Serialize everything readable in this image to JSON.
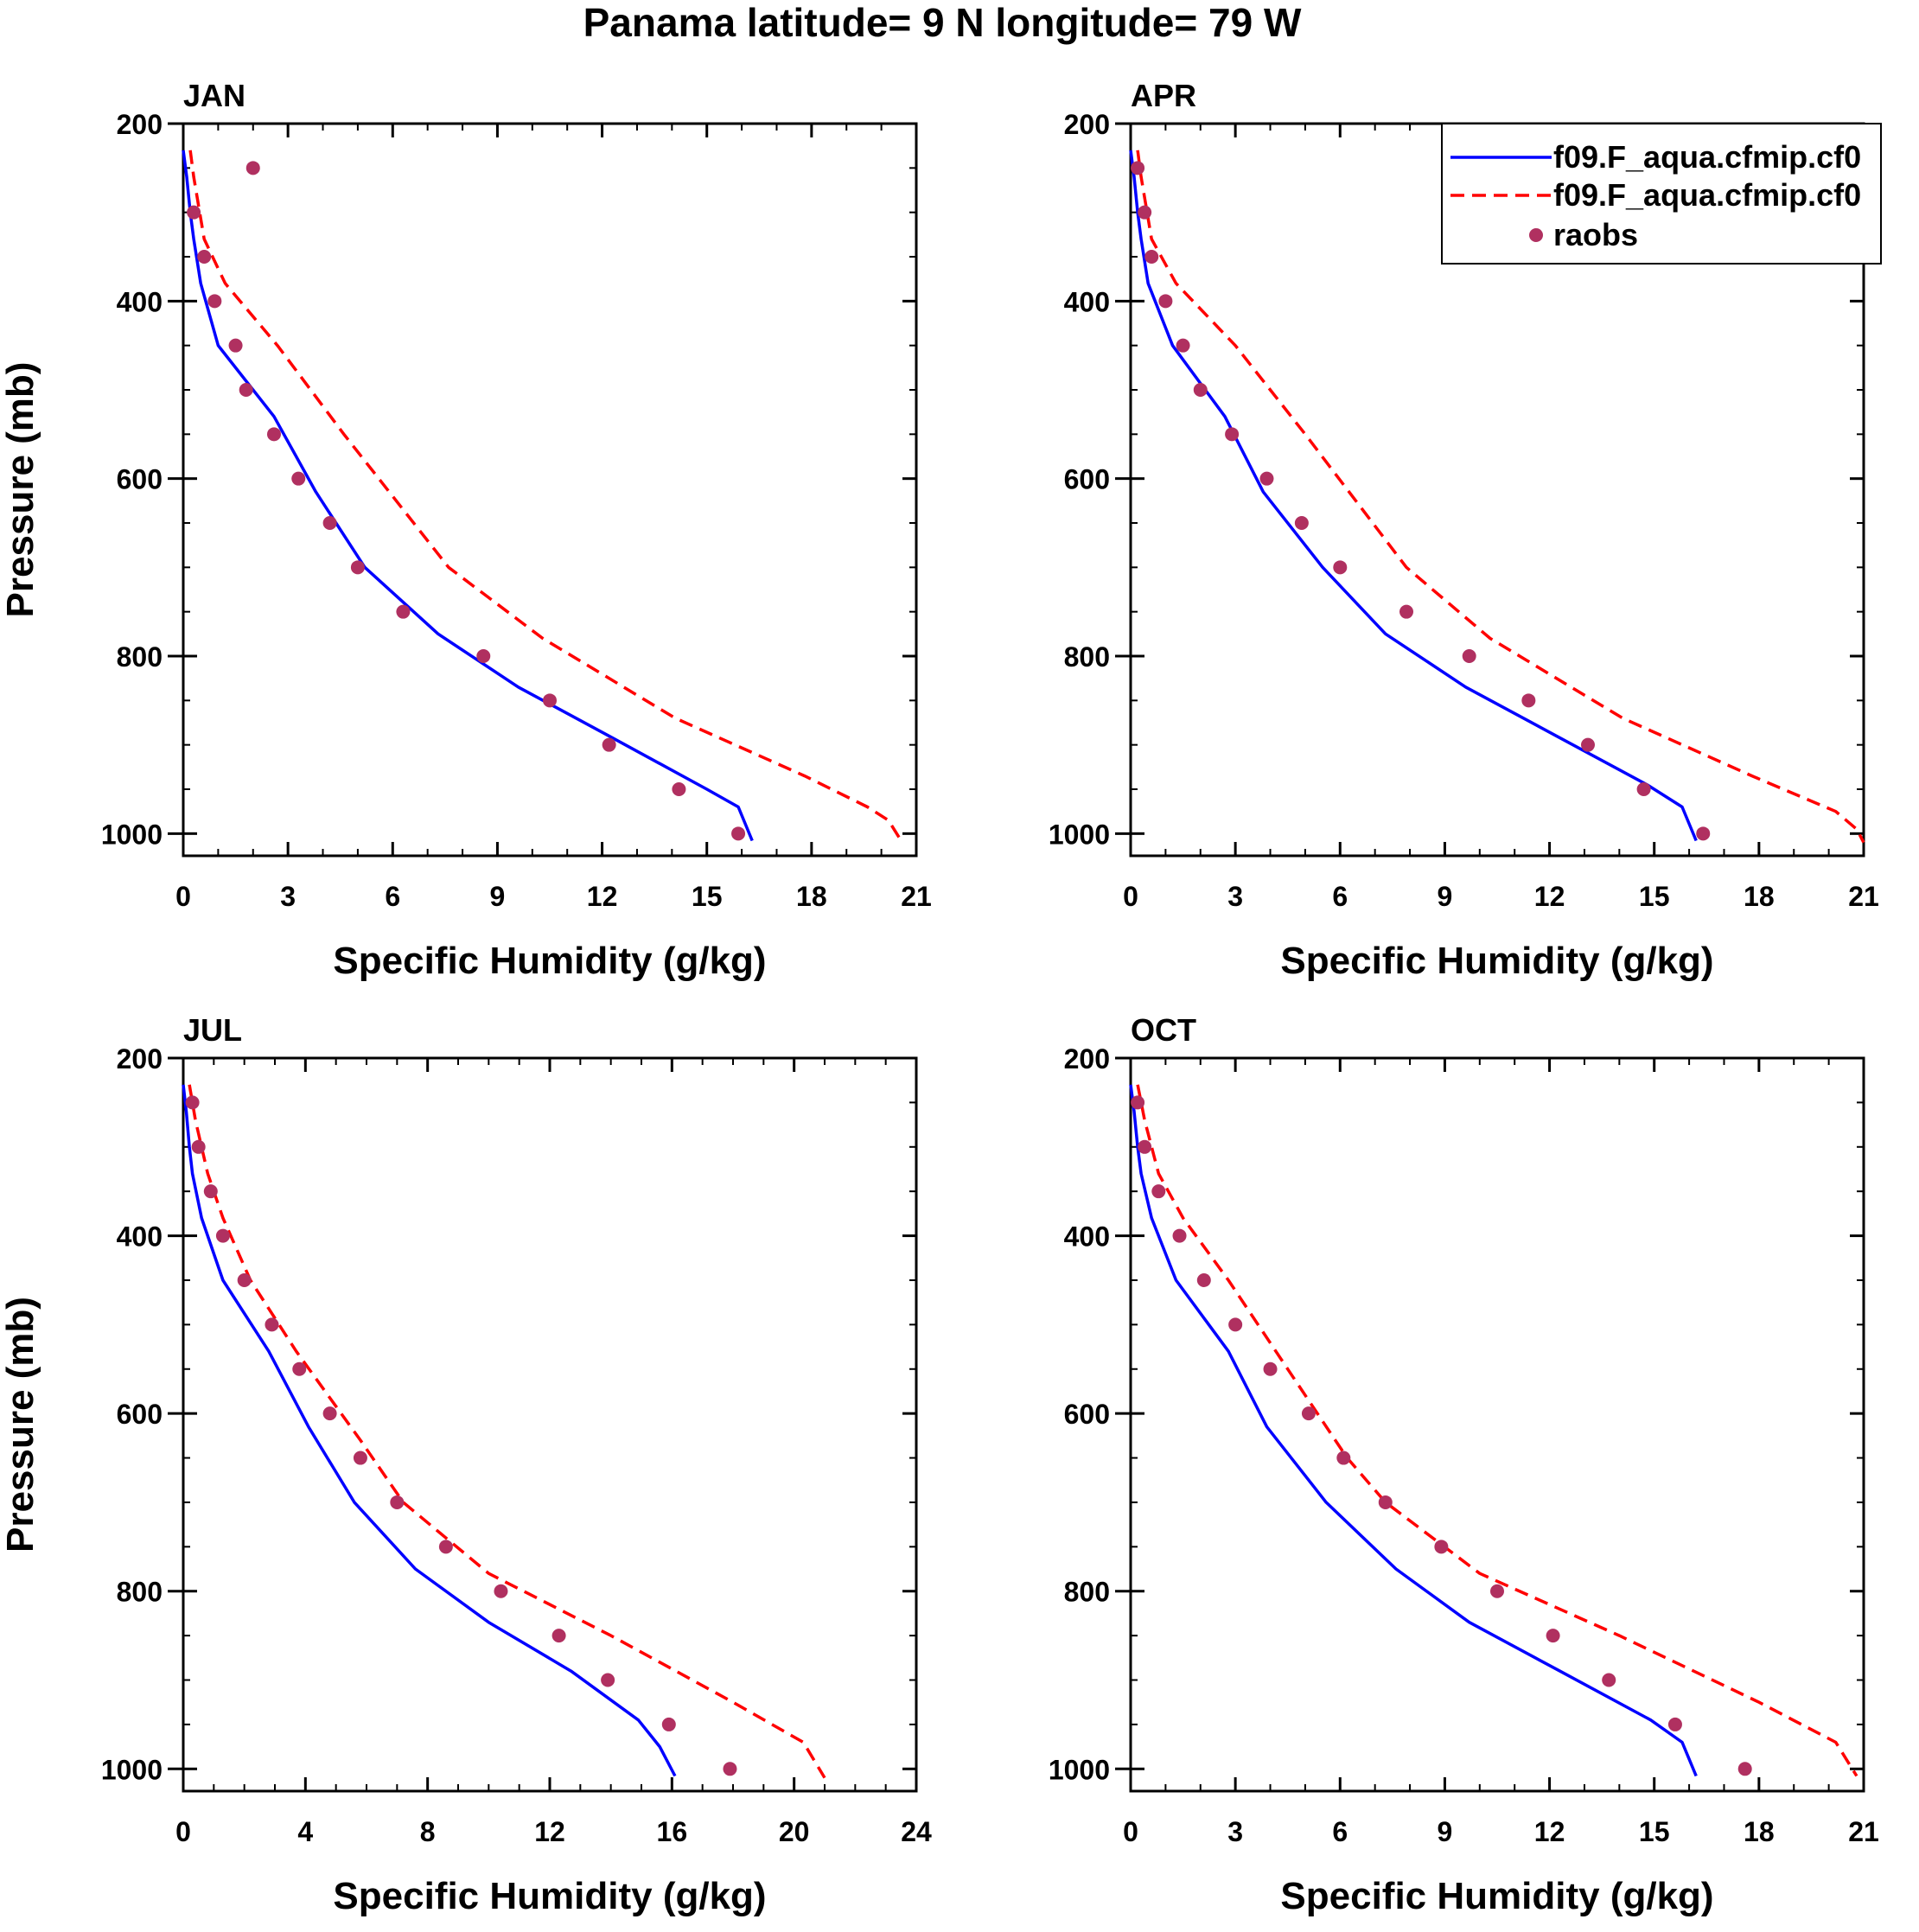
{
  "title": "Panama  latitude= 9 N longitude= 79 W",
  "legend": {
    "items": [
      {
        "label": "f09.F_aqua.cfmip.cf0",
        "style": "solid",
        "color": "#0000ff"
      },
      {
        "label": "f09.F_aqua.cfmip.cf0",
        "style": "dashed",
        "color": "#ff0000"
      },
      {
        "label": "raobs",
        "style": "dots",
        "color": "#b03060"
      }
    ]
  },
  "chart_data": [
    {
      "type": "line",
      "title": "JAN",
      "xlabel": "Specific Humidity (g/kg)",
      "ylabel": "Pressure (mb)",
      "xlim": [
        0,
        21
      ],
      "xticks": [
        "0",
        "3",
        "6",
        "9",
        "12",
        "15",
        "18",
        "21"
      ],
      "ylim": [
        200,
        1025
      ],
      "yticks": [
        "200",
        "400",
        "600",
        "800",
        "1000"
      ],
      "series": [
        {
          "name": "f09.F_aqua.cfmip.cf0",
          "style": "solid",
          "x": [
            0.0,
            0.1,
            0.2,
            0.3,
            0.5,
            1.0,
            2.6,
            3.8,
            5.2,
            7.3,
            9.6,
            12.2,
            15.0,
            15.9,
            16.3
          ],
          "y": [
            230,
            260,
            300,
            330,
            380,
            450,
            530,
            615,
            700,
            775,
            835,
            890,
            950,
            970,
            1008
          ]
        },
        {
          "name": "f09.F_aqua.cfmip.cf0",
          "style": "dashed",
          "x": [
            0.2,
            0.3,
            0.6,
            1.2,
            2.7,
            4.6,
            7.6,
            10.3,
            14.1,
            17.8,
            19.6,
            20.2,
            20.6
          ],
          "y": [
            230,
            260,
            330,
            380,
            450,
            550,
            700,
            780,
            870,
            935,
            970,
            985,
            1010
          ]
        },
        {
          "name": "raobs",
          "style": "dots",
          "x": [
            2.0,
            0.3,
            0.6,
            0.9,
            1.5,
            1.8,
            2.6,
            3.3,
            4.2,
            5.0,
            6.3,
            8.6,
            10.5,
            12.2,
            14.2,
            15.9
          ],
          "y": [
            250,
            300,
            350,
            400,
            450,
            500,
            550,
            600,
            650,
            700,
            750,
            800,
            850,
            900,
            950,
            1000
          ]
        }
      ]
    },
    {
      "type": "line",
      "title": "APR",
      "xlabel": "Specific Humidity (g/kg)",
      "ylabel": "",
      "xlim": [
        0,
        21
      ],
      "xticks": [
        "0",
        "3",
        "6",
        "9",
        "12",
        "15",
        "18",
        "21"
      ],
      "ylim": [
        200,
        1025
      ],
      "yticks": [
        "200",
        "400",
        "600",
        "800",
        "1000"
      ],
      "series": [
        {
          "name": "f09.F_aqua.cfmip.cf0",
          "style": "solid",
          "x": [
            0.0,
            0.1,
            0.2,
            0.3,
            0.5,
            1.2,
            2.7,
            3.8,
            5.5,
            7.3,
            9.6,
            12.2,
            14.8,
            15.8,
            16.2
          ],
          "y": [
            230,
            260,
            300,
            330,
            380,
            450,
            530,
            615,
            700,
            775,
            835,
            890,
            945,
            970,
            1008
          ]
        },
        {
          "name": "f09.F_aqua.cfmip.cf0",
          "style": "dashed",
          "x": [
            0.2,
            0.3,
            0.6,
            1.3,
            3.0,
            5.0,
            7.9,
            10.3,
            14.1,
            17.8,
            20.2,
            20.8,
            21.0
          ],
          "y": [
            230,
            260,
            330,
            380,
            450,
            550,
            700,
            780,
            870,
            935,
            975,
            995,
            1010
          ]
        },
        {
          "name": "raobs",
          "style": "dots",
          "x": [
            0.2,
            0.4,
            0.6,
            1.0,
            1.5,
            2.0,
            2.9,
            3.9,
            4.9,
            6.0,
            7.9,
            9.7,
            11.4,
            13.1,
            14.7,
            16.4
          ],
          "y": [
            250,
            300,
            350,
            400,
            450,
            500,
            550,
            600,
            650,
            700,
            750,
            800,
            850,
            900,
            950,
            1000
          ]
        }
      ]
    },
    {
      "type": "line",
      "title": "JUL",
      "xlabel": "Specific Humidity (g/kg)",
      "ylabel": "Pressure (mb)",
      "xlim": [
        0,
        24
      ],
      "xticks": [
        "0",
        "4",
        "8",
        "12",
        "16",
        "20",
        "24"
      ],
      "ylim": [
        200,
        1025
      ],
      "yticks": [
        "200",
        "400",
        "600",
        "800",
        "1000"
      ],
      "series": [
        {
          "name": "f09.F_aqua.cfmip.cf0",
          "style": "solid",
          "x": [
            0.0,
            0.1,
            0.2,
            0.3,
            0.6,
            1.3,
            2.8,
            4.1,
            5.6,
            7.6,
            10.0,
            12.7,
            14.9,
            15.6,
            16.1
          ],
          "y": [
            230,
            260,
            300,
            330,
            380,
            450,
            530,
            615,
            700,
            775,
            835,
            890,
            945,
            975,
            1008
          ]
        },
        {
          "name": "f09.F_aqua.cfmip.cf0",
          "style": "dashed",
          "x": [
            0.2,
            0.4,
            0.8,
            1.3,
            2.2,
            3.7,
            5.8,
            7.2,
            10.0,
            14.0,
            18.0,
            20.3,
            21.0
          ],
          "y": [
            230,
            270,
            330,
            380,
            450,
            530,
            630,
            700,
            780,
            850,
            925,
            970,
            1010
          ]
        },
        {
          "name": "raobs",
          "style": "dots",
          "x": [
            0.3,
            0.5,
            0.9,
            1.3,
            2.0,
            2.9,
            3.8,
            4.8,
            5.8,
            7.0,
            8.6,
            10.4,
            12.3,
            13.9,
            15.9,
            17.9
          ],
          "y": [
            250,
            300,
            350,
            400,
            450,
            500,
            550,
            600,
            650,
            700,
            750,
            800,
            850,
            900,
            950,
            1000
          ]
        }
      ]
    },
    {
      "type": "line",
      "title": "OCT",
      "xlabel": "Specific Humidity (g/kg)",
      "ylabel": "",
      "xlim": [
        0,
        21
      ],
      "xticks": [
        "0",
        "3",
        "6",
        "9",
        "12",
        "15",
        "18",
        "21"
      ],
      "ylim": [
        200,
        1025
      ],
      "yticks": [
        "200",
        "400",
        "600",
        "800",
        "1000"
      ],
      "series": [
        {
          "name": "f09.F_aqua.cfmip.cf0",
          "style": "solid",
          "x": [
            0.0,
            0.1,
            0.2,
            0.3,
            0.6,
            1.3,
            2.8,
            3.9,
            5.6,
            7.6,
            9.7,
            12.3,
            14.9,
            15.8,
            16.2
          ],
          "y": [
            230,
            260,
            300,
            330,
            380,
            450,
            530,
            615,
            700,
            775,
            835,
            890,
            945,
            970,
            1008
          ]
        },
        {
          "name": "f09.F_aqua.cfmip.cf0",
          "style": "dashed",
          "x": [
            0.2,
            0.4,
            0.8,
            1.5,
            2.8,
            4.5,
            6.2,
            7.3,
            10.0,
            14.0,
            18.0,
            20.2,
            20.8
          ],
          "y": [
            230,
            270,
            330,
            380,
            450,
            550,
            650,
            700,
            780,
            850,
            925,
            970,
            1008
          ]
        },
        {
          "name": "raobs",
          "style": "dots",
          "x": [
            0.2,
            0.4,
            0.8,
            1.4,
            2.1,
            3.0,
            4.0,
            5.1,
            6.1,
            7.3,
            8.9,
            10.5,
            12.1,
            13.7,
            15.6,
            17.6
          ],
          "y": [
            250,
            300,
            350,
            400,
            450,
            500,
            550,
            600,
            650,
            700,
            750,
            800,
            850,
            900,
            950,
            1000
          ]
        }
      ]
    }
  ]
}
